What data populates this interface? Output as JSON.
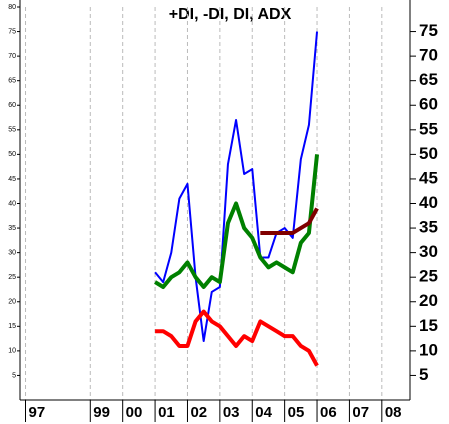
{
  "chart_data": {
    "type": "line",
    "title": "+DI, -DI, DI, ADX",
    "x": [
      2001,
      2001.25,
      2001.5,
      2001.75,
      2002,
      2002.25,
      2002.5,
      2002.75,
      2003,
      2003.25,
      2003.5,
      2003.75,
      2004,
      2004.25,
      2004.5,
      2004.75,
      2005,
      2005.25,
      2005.5,
      2005.75,
      2006
    ],
    "series": [
      {
        "color": "#0000ff",
        "width": 2,
        "values": [
          26,
          24,
          30,
          41,
          44,
          25,
          12,
          22,
          23,
          48,
          57,
          46,
          47,
          29,
          29,
          34,
          35,
          33,
          49,
          56,
          75
        ]
      },
      {
        "color": "#008000",
        "width": 4,
        "values": [
          24,
          23,
          25,
          26,
          28,
          25,
          23,
          25,
          24,
          36,
          40,
          35,
          33,
          29,
          27,
          28,
          27,
          26,
          32,
          34,
          50
        ]
      },
      {
        "color": "#ff0000",
        "width": 4,
        "values": [
          14,
          14,
          13,
          11,
          11,
          16,
          18,
          16,
          15,
          13,
          11,
          13,
          12,
          16,
          15,
          14,
          13,
          13,
          11,
          10,
          7
        ]
      },
      {
        "color": "#800000",
        "width": 4,
        "values": [
          null,
          null,
          null,
          null,
          null,
          null,
          null,
          null,
          null,
          null,
          null,
          null,
          null,
          34,
          34,
          34,
          34,
          34,
          35,
          36,
          39
        ]
      }
    ],
    "xlim": [
      1996.83,
      2008.87
    ],
    "xticks": [
      {
        "value": 1997,
        "label": "97"
      },
      {
        "value": 1999,
        "label": "99"
      },
      {
        "value": 2000,
        "label": "00"
      },
      {
        "value": 2001,
        "label": "01"
      },
      {
        "value": 2002,
        "label": "02"
      },
      {
        "value": 2003,
        "label": "03"
      },
      {
        "value": 2004,
        "label": "04"
      },
      {
        "value": 2005,
        "label": "05"
      },
      {
        "value": 2006,
        "label": "06"
      },
      {
        "value": 2007,
        "label": "07"
      },
      {
        "value": 2008,
        "label": "08"
      }
    ],
    "ylim": [
      0,
      80
    ],
    "yticks": [
      5,
      10,
      15,
      20,
      25,
      30,
      35,
      40,
      45,
      50,
      55,
      60,
      65,
      70,
      75,
      80
    ],
    "y2lim": [
      0,
      80
    ],
    "y2ticks": [
      5,
      10,
      15,
      20,
      25,
      30,
      35,
      40,
      45,
      50,
      55,
      60,
      65,
      70,
      75
    ],
    "grid": true
  }
}
